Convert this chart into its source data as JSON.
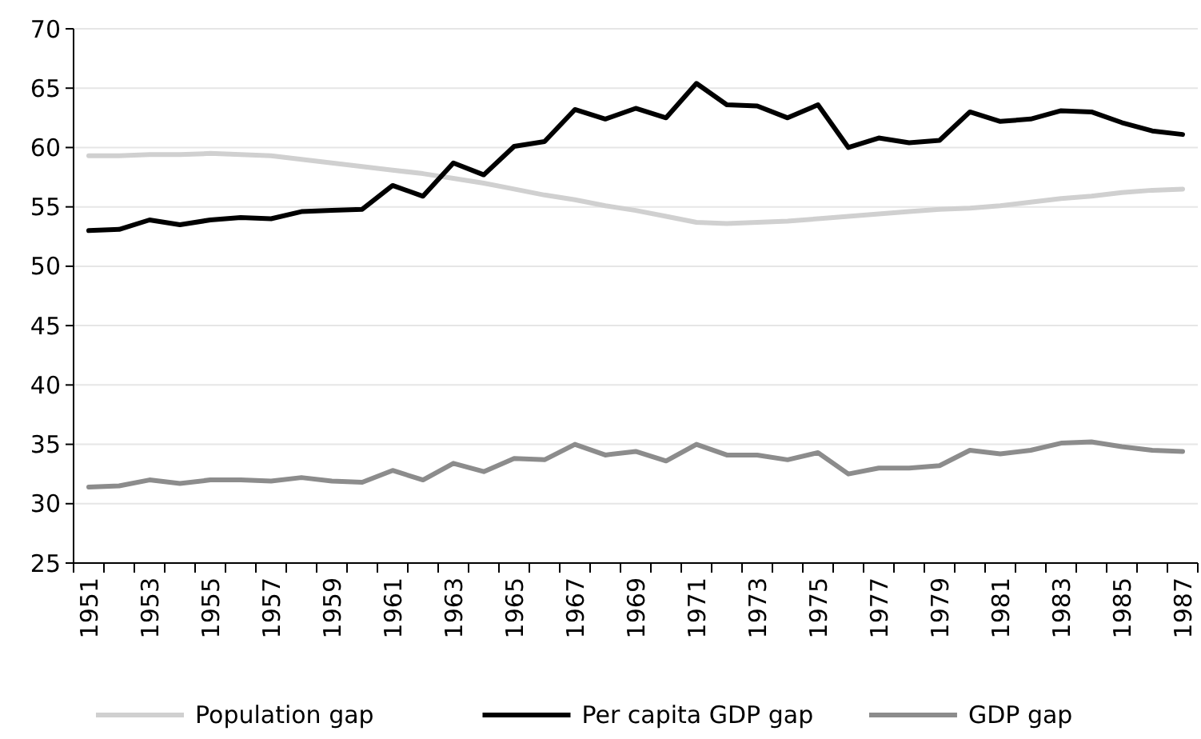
{
  "chart_data": {
    "type": "line",
    "categories": [
      "1951",
      null,
      "1953",
      null,
      "1955",
      null,
      "1957",
      null,
      "1959",
      null,
      "1961",
      null,
      "1963",
      null,
      "1965",
      null,
      "1967",
      null,
      "1969",
      null,
      "1971",
      null,
      "1973",
      null,
      "1975",
      null,
      "1977",
      null,
      "1979",
      null,
      "1981",
      null,
      "1983",
      null,
      "1985",
      null,
      "1987"
    ],
    "series": [
      {
        "name": "Population gap",
        "color": "#d0d0d0",
        "values": [
          59.3,
          59.3,
          59.4,
          59.4,
          59.5,
          59.4,
          59.3,
          59.0,
          58.7,
          58.4,
          58.1,
          57.8,
          57.4,
          57.0,
          56.5,
          56.0,
          55.6,
          55.1,
          54.7,
          54.2,
          53.7,
          53.6,
          53.7,
          53.8,
          54.0,
          54.2,
          54.4,
          54.6,
          54.8,
          54.9,
          55.1,
          55.4,
          55.7,
          55.9,
          56.2,
          56.4,
          56.5
        ]
      },
      {
        "name": "Per capita GDP gap",
        "color": "#000000",
        "values": [
          53.0,
          53.1,
          53.9,
          53.5,
          53.9,
          54.1,
          54.0,
          54.6,
          54.7,
          54.8,
          56.8,
          55.9,
          58.7,
          57.7,
          60.1,
          60.5,
          63.2,
          62.4,
          63.3,
          62.5,
          65.4,
          63.6,
          63.5,
          62.5,
          63.6,
          60.0,
          60.8,
          60.4,
          60.6,
          63.0,
          62.2,
          62.4,
          63.1,
          63.0,
          62.1,
          61.4,
          61.1
        ]
      },
      {
        "name": "GDP gap",
        "color": "#8c8c8c",
        "values": [
          31.4,
          31.5,
          32.0,
          31.7,
          32.0,
          32.0,
          31.9,
          32.2,
          31.9,
          31.8,
          32.8,
          32.0,
          33.4,
          32.7,
          33.8,
          33.7,
          35.0,
          34.1,
          34.4,
          33.6,
          35.0,
          34.1,
          34.1,
          33.7,
          34.3,
          32.5,
          33.0,
          33.0,
          33.2,
          34.5,
          34.2,
          34.5,
          35.1,
          35.2,
          34.8,
          34.5,
          34.4
        ]
      }
    ],
    "ylim": [
      25,
      70
    ],
    "yticks": [
      25,
      30,
      35,
      40,
      45,
      50,
      55,
      60,
      65,
      70
    ],
    "grid": "y",
    "legend": "bottom",
    "marker": "none",
    "line_style": "solid"
  }
}
